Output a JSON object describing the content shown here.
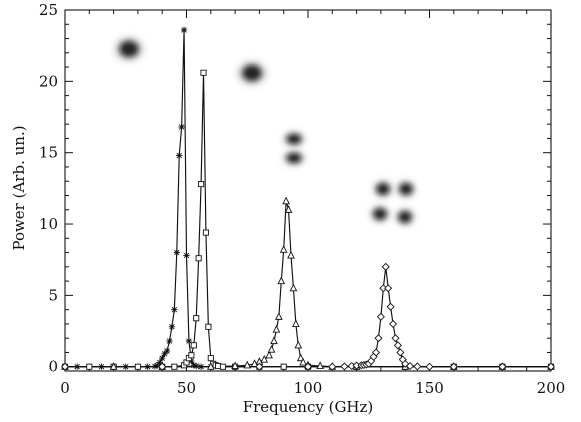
{
  "chart_data": {
    "type": "line",
    "title": "",
    "xlabel": "Frequency (GHz)",
    "ylabel": "Power (Arb. un.)",
    "xlim": [
      0,
      200
    ],
    "ylim": [
      -0.3,
      25
    ],
    "xticks": [
      0,
      50,
      100,
      150,
      200
    ],
    "yticks": [
      0,
      5,
      10,
      15,
      20,
      25
    ],
    "grid": false,
    "legend": "none",
    "series": [
      {
        "marker": "asterisk",
        "color": "#111111",
        "x": [
          0,
          5,
          10,
          15,
          20,
          25,
          30,
          34,
          37,
          38,
          39,
          40,
          41,
          42,
          43,
          44,
          45,
          46,
          47,
          48,
          49,
          50,
          51,
          52,
          53,
          54,
          56,
          60,
          70,
          80,
          90,
          100,
          120,
          140,
          160,
          180,
          200
        ],
        "y": [
          0,
          0,
          0,
          0,
          0,
          0,
          0,
          0,
          0.03,
          0.1,
          0.3,
          0.6,
          0.9,
          1.1,
          1.8,
          2.8,
          4.0,
          8.0,
          14.8,
          16.8,
          23.6,
          7.8,
          1.8,
          0.4,
          0.1,
          0.05,
          0,
          0,
          0,
          0,
          0,
          0,
          0,
          0,
          0,
          0,
          0
        ]
      },
      {
        "marker": "square",
        "color": "#111111",
        "x": [
          0,
          10,
          20,
          30,
          40,
          45,
          49,
          50,
          51,
          52,
          53,
          54,
          55,
          56,
          57,
          58,
          59,
          60,
          61,
          62,
          63,
          65,
          70,
          80,
          90,
          100,
          120,
          140,
          160,
          180,
          200
        ],
        "y": [
          0,
          0,
          0,
          0,
          0,
          0,
          0.1,
          0.3,
          0.6,
          0.8,
          1.5,
          3.4,
          7.6,
          12.8,
          20.6,
          9.4,
          2.8,
          0.6,
          0.2,
          0.1,
          0.05,
          0,
          0,
          0,
          0,
          0,
          0,
          0,
          0,
          0,
          0
        ]
      },
      {
        "marker": "triangle",
        "color": "#111111",
        "x": [
          0,
          20,
          40,
          60,
          70,
          75,
          78,
          80,
          82,
          84,
          85,
          86,
          87,
          88,
          89,
          90,
          91,
          92,
          93,
          94,
          95,
          96,
          97,
          98,
          100,
          105,
          110,
          120,
          140,
          160,
          180,
          200
        ],
        "y": [
          0,
          0,
          0,
          0,
          0.05,
          0.1,
          0.2,
          0.35,
          0.5,
          0.8,
          1.2,
          1.8,
          2.6,
          3.5,
          6.0,
          8.2,
          11.6,
          11.0,
          7.8,
          5.5,
          3.0,
          1.5,
          0.6,
          0.3,
          0.1,
          0.05,
          0,
          0,
          0,
          0,
          0,
          0
        ]
      },
      {
        "marker": "diamond",
        "color": "#111111",
        "x": [
          0,
          40,
          80,
          100,
          110,
          115,
          118,
          120,
          122,
          123,
          124,
          125,
          126,
          127,
          128,
          129,
          130,
          131,
          132,
          133,
          134,
          135,
          136,
          137,
          138,
          139,
          140,
          142,
          145,
          150,
          160,
          180,
          200
        ],
        "y": [
          0,
          0,
          0,
          0,
          0,
          0.02,
          0.05,
          0.08,
          0.1,
          0.12,
          0.15,
          0.2,
          0.4,
          0.7,
          1.0,
          2.0,
          3.5,
          5.5,
          7.0,
          5.5,
          4.2,
          3.0,
          2.0,
          1.5,
          1.0,
          0.5,
          0.2,
          0.05,
          0.02,
          0,
          0,
          0,
          0
        ]
      }
    ],
    "insets": [
      {
        "pattern": "single-lobe",
        "color": "#111111"
      },
      {
        "pattern": "single-lobe",
        "color": "#111111"
      },
      {
        "pattern": "two-lobes-vertical",
        "color": "#111111"
      },
      {
        "pattern": "four-lobes",
        "color": "#111111"
      }
    ]
  }
}
